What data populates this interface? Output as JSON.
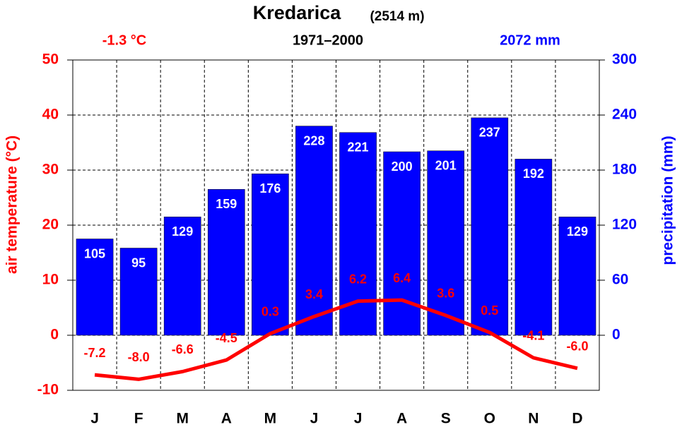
{
  "chart_data": {
    "type": "bar-line",
    "title": "Kredarica",
    "title_note": "(2514 m)",
    "annotations": [
      "-1.3 °C",
      "1971–2000",
      "2072 mm"
    ],
    "ylabel": "air temperature (°C)",
    "y2label": "precipitation (mm)",
    "categories": [
      "J",
      "F",
      "M",
      "A",
      "M",
      "J",
      "J",
      "A",
      "S",
      "O",
      "N",
      "D"
    ],
    "series": [
      {
        "type": "bar",
        "axis": "y2",
        "color": "#0000ff",
        "values": [
          105,
          95,
          129,
          159,
          176,
          228,
          221,
          200,
          201,
          237,
          192,
          129
        ]
      },
      {
        "type": "line",
        "axis": "y",
        "color": "#ff0000",
        "values": [
          -7.2,
          -8.0,
          -6.6,
          -4.5,
          0.3,
          3.4,
          6.2,
          6.4,
          3.6,
          0.5,
          -4.1,
          -6.0
        ],
        "value_labels": [
          "-7.2",
          "-8.0",
          "-6.6",
          "-4.5",
          "0.3",
          "3.4",
          "6.2",
          "6.4",
          "3.6",
          "0.5",
          "-4.1",
          "-6.0"
        ]
      }
    ],
    "ylim": [
      -10,
      50
    ],
    "yticks": [
      -10,
      0,
      10,
      20,
      30,
      40,
      50
    ],
    "y2lim": [
      -60,
      300
    ],
    "y2ticks": [
      0,
      60,
      120,
      180,
      240,
      300
    ],
    "grid": true
  }
}
